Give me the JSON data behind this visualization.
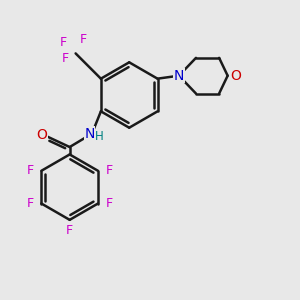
{
  "bg_color": "#e8e8e8",
  "bond_color": "#1a1a1a",
  "bond_width": 1.8,
  "atom_colors": {
    "F": "#cc00cc",
    "O": "#cc0000",
    "N_blue": "#0000cc",
    "H": "#008080"
  }
}
